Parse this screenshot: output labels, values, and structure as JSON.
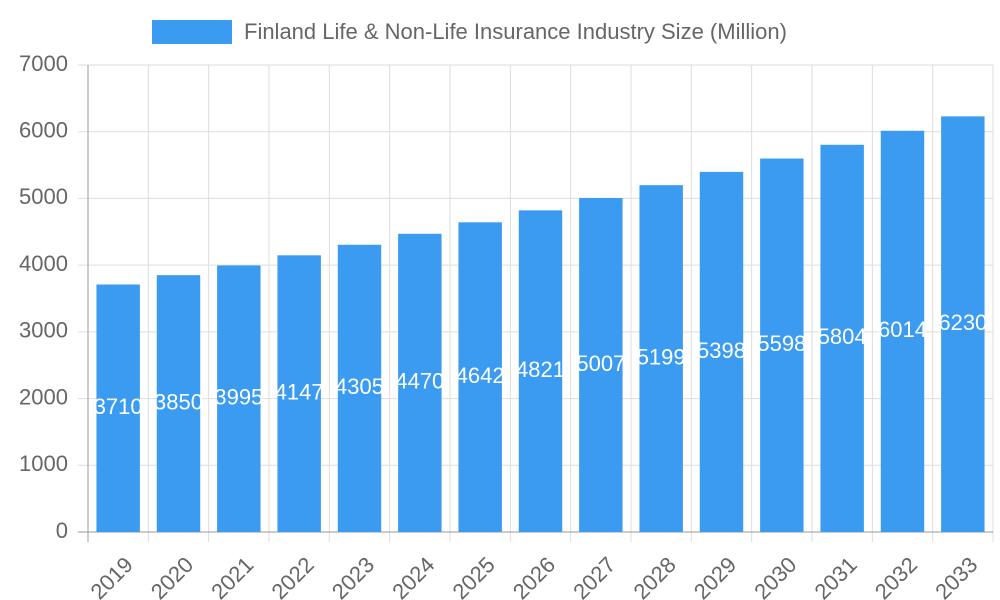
{
  "chart_data": {
    "type": "bar",
    "title": "Finland Life & Non-Life Insurance Industry Size (Million)",
    "categories": [
      "2019",
      "2020",
      "2021",
      "2022",
      "2023",
      "2024",
      "2025",
      "2026",
      "2027",
      "2028",
      "2029",
      "2030",
      "2031",
      "2032",
      "2033"
    ],
    "series": [
      {
        "name": "Finland Life & Non-Life Insurance Industry Size (Million)",
        "color": "#3a9bf0",
        "values": [
          3710,
          3850,
          3995,
          4147,
          4305,
          4470,
          4642,
          4821,
          5007,
          5199,
          5398,
          5598,
          5804,
          6014,
          6230
        ]
      }
    ],
    "ylim": [
      0,
      7000
    ],
    "yticks": [
      0,
      1000,
      2000,
      3000,
      4000,
      5000,
      6000,
      7000
    ],
    "grid": true
  }
}
